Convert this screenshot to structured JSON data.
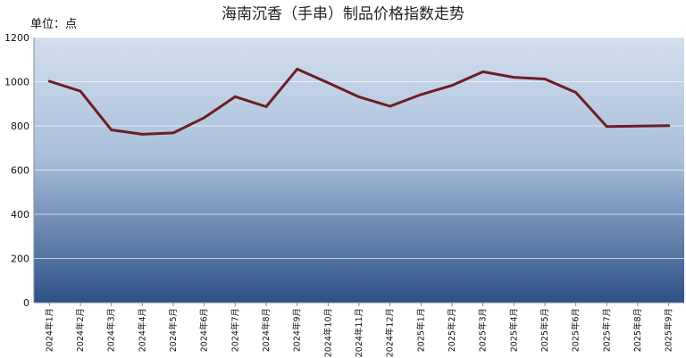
{
  "chart_data": {
    "type": "line",
    "title": "海南沉香（手串）制品价格指数走势",
    "unit_label": "单位：点",
    "xlabel": "",
    "ylabel": "",
    "ylim": [
      0,
      1200
    ],
    "yticks": [
      0,
      200,
      400,
      600,
      800,
      1000,
      1200
    ],
    "grid": true,
    "legend": "none",
    "categories": [
      "2024年1月",
      "2024年2月",
      "2024年3月",
      "2024年4月",
      "2024年5月",
      "2024年6月",
      "2024年7月",
      "2024年8月",
      "2024年9月",
      "2024年10月",
      "2024年11月",
      "2024年12月",
      "2025年1月",
      "2025年2月",
      "2025年3月",
      "2025年4月",
      "2025年5月",
      "2025年6月",
      "2025年7月",
      "2025年8月",
      "2025年9月"
    ],
    "series": [
      {
        "values": [
          1002,
          957,
          782,
          762,
          768,
          837,
          932,
          887,
          1057,
          995,
          931,
          889,
          942,
          983,
          1045,
          1020,
          1012,
          951,
          797,
          799,
          801
        ]
      }
    ],
    "colors": {
      "line": "#6b1f24",
      "plot_top": "#d3deee",
      "plot_bottom": "#2c5186",
      "gridline": "#ffffff"
    }
  }
}
